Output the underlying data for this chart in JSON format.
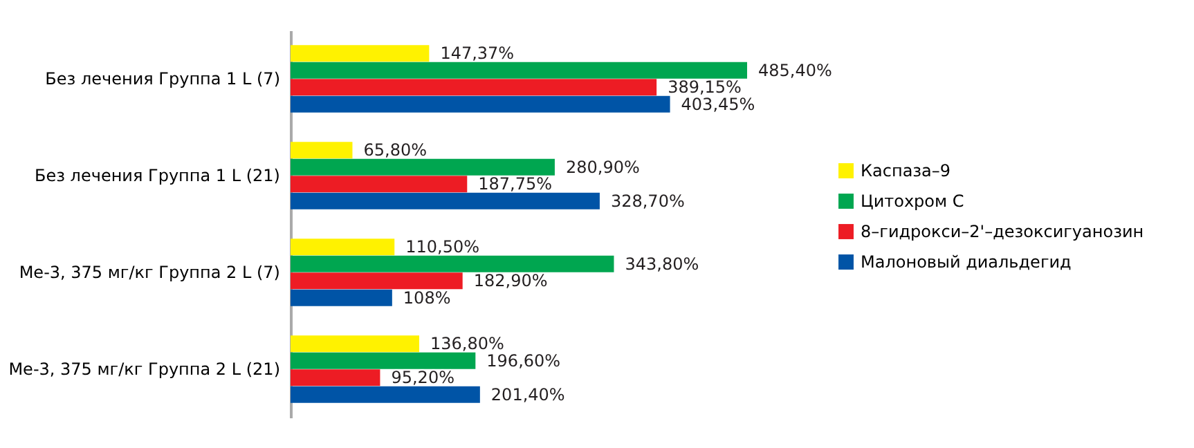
{
  "chart_data": {
    "type": "bar",
    "orientation": "horizontal",
    "legend": "right",
    "grid": false,
    "categories": [
      "Без лечения Группа 1 L (7)",
      "Без лечения Группа 1 L (21)",
      "Ме-3, 375 мг/кг Группа 2 L (7)",
      "Ме-3, 375 мг/кг Группа 2 L (21)"
    ],
    "series": [
      {
        "name": "Каспаза–9",
        "color": "#fff200",
        "values": [
          147.37,
          65.8,
          110.5,
          136.8
        ],
        "value_labels": [
          "147,37%",
          "65,80%",
          "110,50%",
          "136,80%"
        ]
      },
      {
        "name": "Цитохром С",
        "color": "#00a650",
        "values": [
          485.4,
          280.9,
          343.8,
          196.6
        ],
        "value_labels": [
          "485,40%",
          "280,90%",
          "343,80%",
          "196,60%"
        ]
      },
      {
        "name": "8–гидрокси–2'–дезоксигуанозин",
        "color": "#ed1c24",
        "values": [
          389.15,
          187.75,
          182.9,
          95.2
        ],
        "value_labels": [
          "389,15%",
          "187,75%",
          "182,90%",
          "95,20%"
        ]
      },
      {
        "name": "Малоновый диальдегид",
        "color": "#0054a6",
        "values": [
          403.45,
          328.7,
          108,
          201.4
        ],
        "value_labels": [
          "403,45%",
          "328,70%",
          "108%",
          "201,40%"
        ]
      }
    ]
  }
}
